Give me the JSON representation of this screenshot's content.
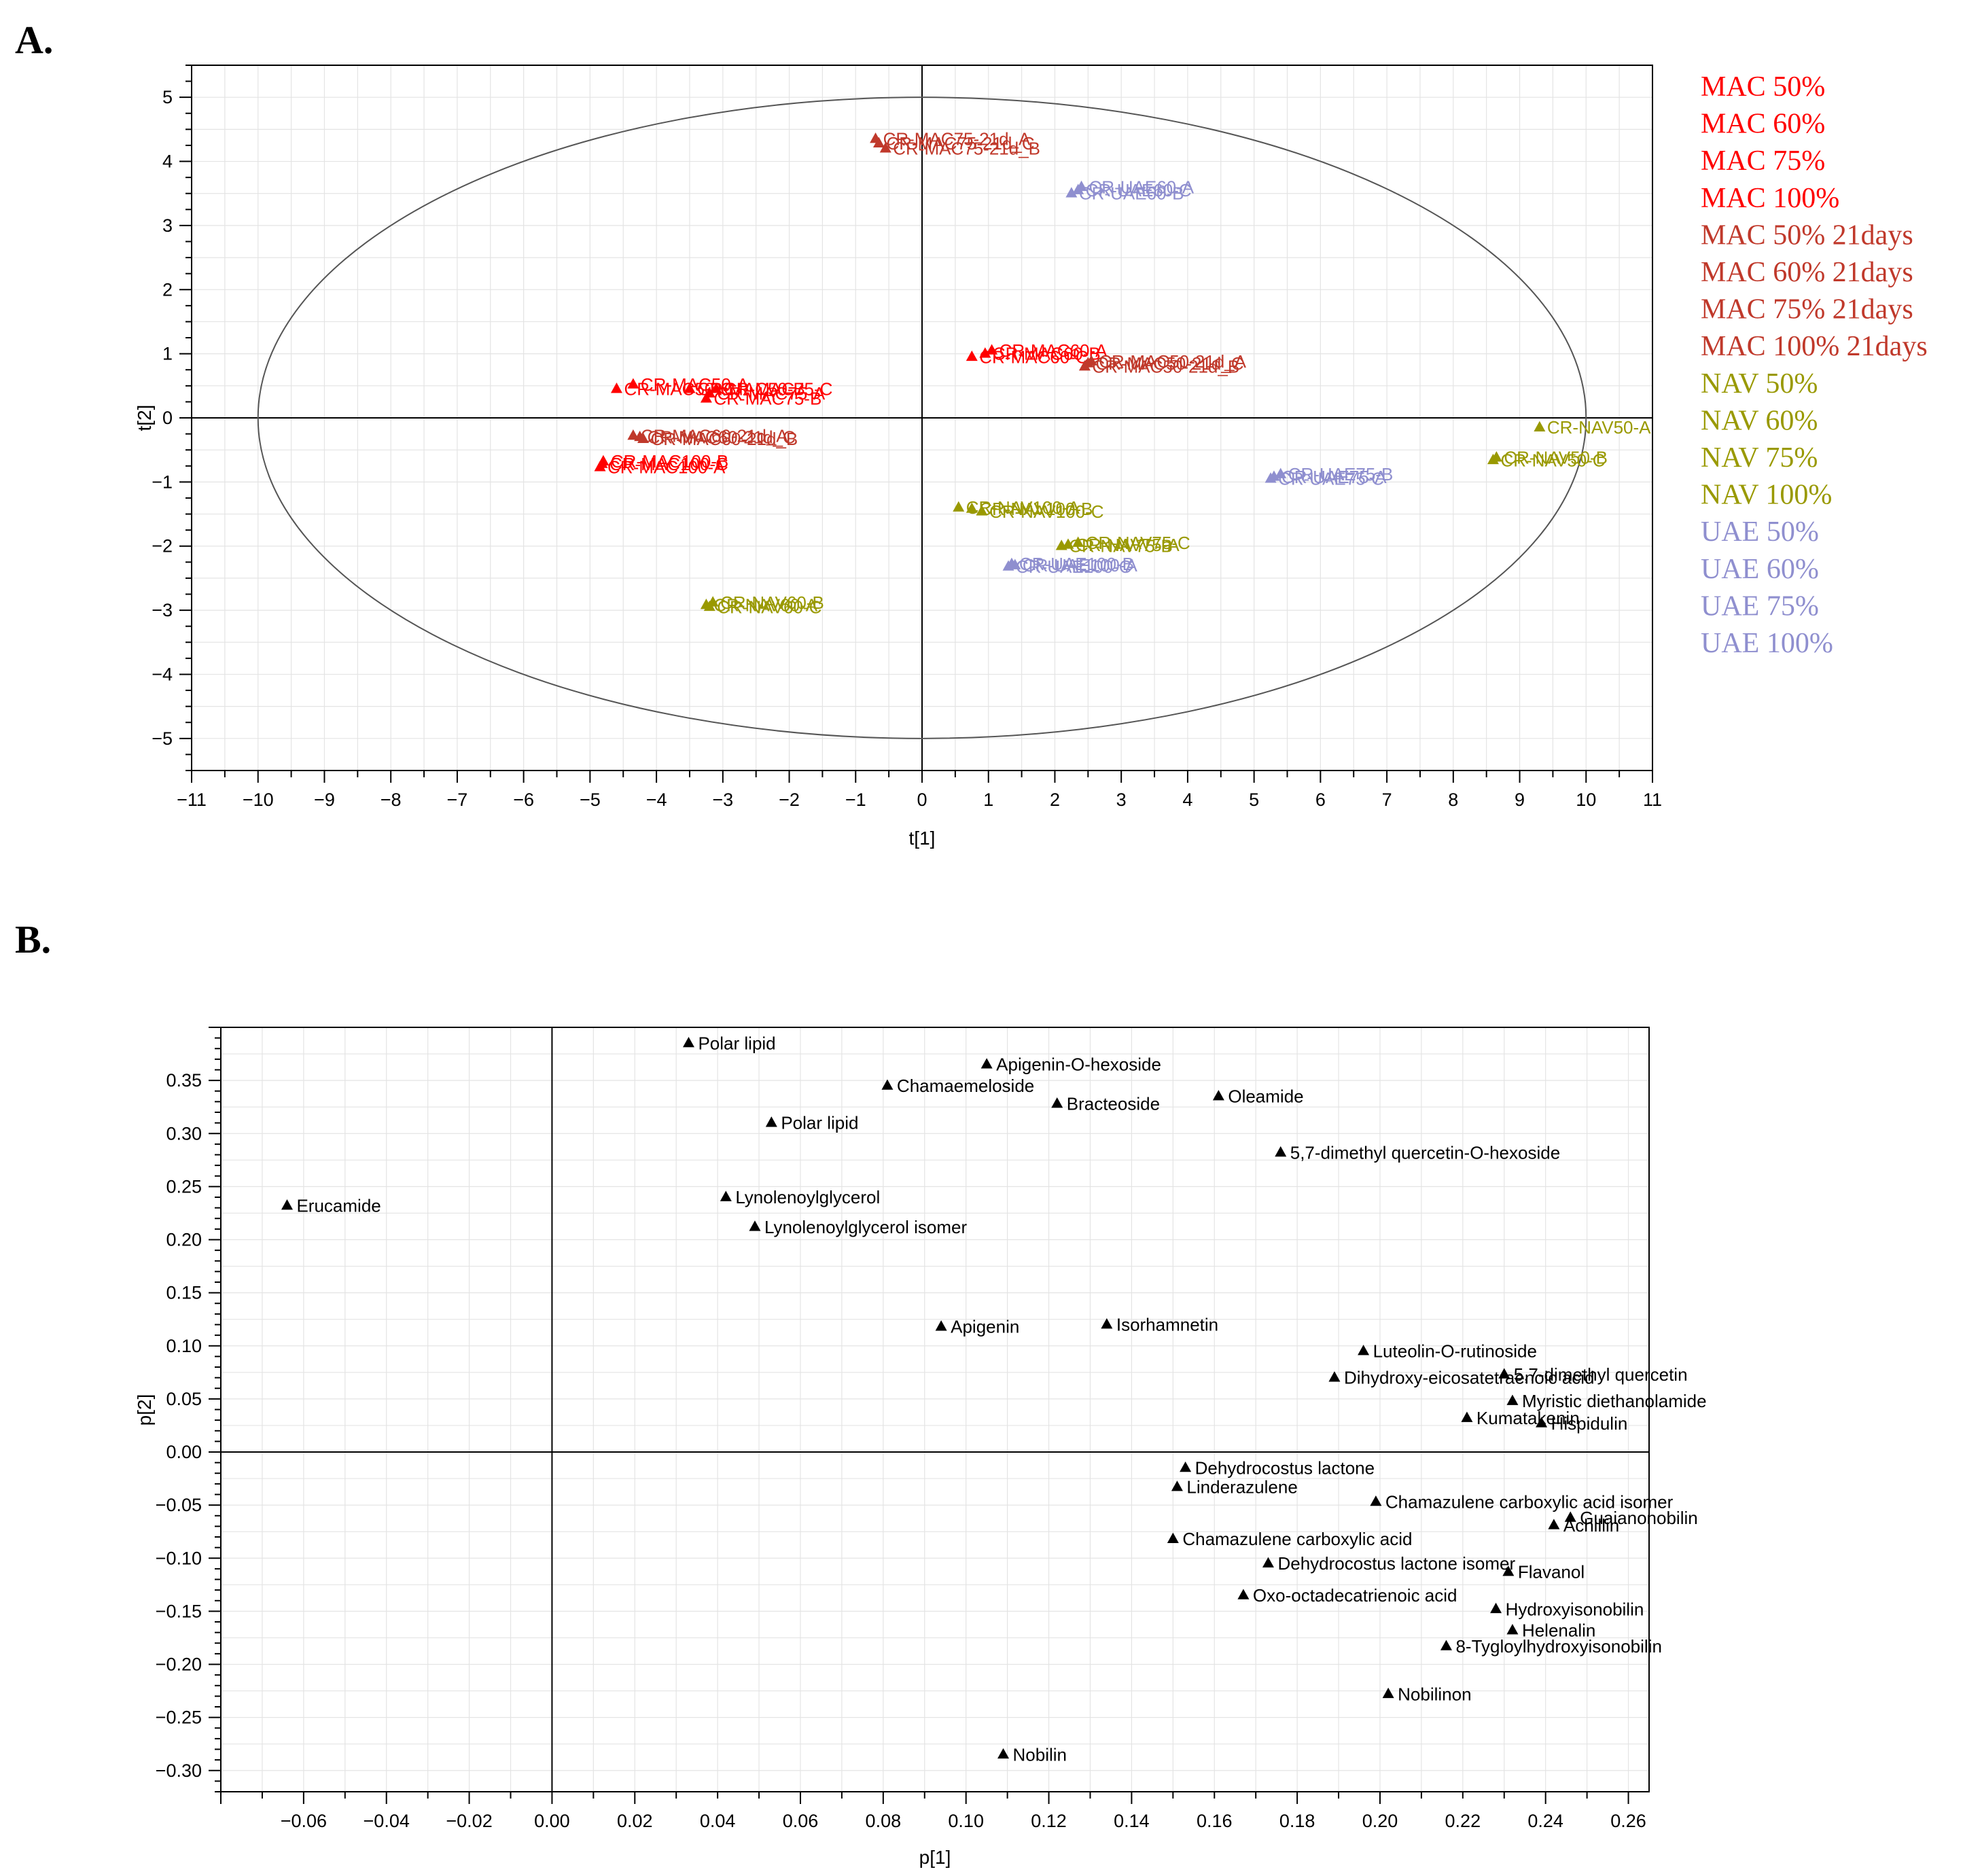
{
  "panels": {
    "a_label": "A.",
    "b_label": "B."
  },
  "chart_data": [
    {
      "type": "scatter",
      "title": "",
      "xlabel": "t[1]",
      "ylabel": "t[2]",
      "xlim": [
        -11,
        11
      ],
      "ylim": [
        -5.5,
        5.5
      ],
      "xticks": [
        -11,
        -10,
        -9,
        -8,
        -7,
        -6,
        -5,
        -4,
        -3,
        -2,
        -1,
        0,
        1,
        2,
        3,
        4,
        5,
        6,
        7,
        8,
        9,
        10,
        11
      ],
      "yticks": [
        -5,
        -4,
        -3,
        -2,
        -1,
        0,
        1,
        2,
        3,
        4,
        5
      ],
      "ellipse": {
        "rx": 10,
        "ry": 5
      },
      "grid": true,
      "colors": {
        "mac": "#ff0000",
        "mac21": "#c0392b",
        "nav": "#999900",
        "uae": "#8f8fcf"
      },
      "legend": [
        {
          "label": "MAC 50%",
          "color": "#ff0000"
        },
        {
          "label": "MAC 60%",
          "color": "#ff0000"
        },
        {
          "label": "MAC 75%",
          "color": "#ff0000"
        },
        {
          "label": "MAC 100%",
          "color": "#ff0000"
        },
        {
          "label": "MAC 50% 21days",
          "color": "#c0392b"
        },
        {
          "label": "MAC 60% 21days",
          "color": "#c0392b"
        },
        {
          "label": "MAC 75% 21days",
          "color": "#c0392b"
        },
        {
          "label": "MAC 100% 21days",
          "color": "#c0392b"
        },
        {
          "label": "NAV 50%",
          "color": "#999900"
        },
        {
          "label": "NAV 60%",
          "color": "#999900"
        },
        {
          "label": "NAV 75%",
          "color": "#999900"
        },
        {
          "label": "NAV 100%",
          "color": "#999900"
        },
        {
          "label": "UAE 50%",
          "color": "#8f8fcf"
        },
        {
          "label": "UAE 60%",
          "color": "#8f8fcf"
        },
        {
          "label": "UAE 75%",
          "color": "#8f8fcf"
        },
        {
          "label": "UAE 100%",
          "color": "#8f8fcf"
        }
      ],
      "points": [
        {
          "label": "CR-MAC75-21d_A",
          "x": -0.7,
          "y": 4.35,
          "group": "mac21"
        },
        {
          "label": "CR-MAC75-21d_C",
          "x": -0.65,
          "y": 4.28,
          "group": "mac21"
        },
        {
          "label": "CR-MAC75-21d_B",
          "x": -0.55,
          "y": 4.2,
          "group": "mac21"
        },
        {
          "label": "CR-UAE60-A",
          "x": 2.4,
          "y": 3.6,
          "group": "uae"
        },
        {
          "label": "CR-UAE60-C",
          "x": 2.35,
          "y": 3.55,
          "group": "uae"
        },
        {
          "label": "CR-UAE60-B",
          "x": 2.25,
          "y": 3.5,
          "group": "uae"
        },
        {
          "label": "CR-MAC60-A",
          "x": 1.05,
          "y": 1.05,
          "group": "mac"
        },
        {
          "label": "CR-MAC60-B",
          "x": 0.95,
          "y": 1.0,
          "group": "mac"
        },
        {
          "label": "CR-MAC60-C",
          "x": 0.75,
          "y": 0.95,
          "group": "mac"
        },
        {
          "label": "CR-MAC50-21d_A",
          "x": 2.55,
          "y": 0.88,
          "group": "mac21"
        },
        {
          "label": "CR-MAC50-21d_C",
          "x": 2.5,
          "y": 0.85,
          "group": "mac21"
        },
        {
          "label": "CR-MAC50-21d_B",
          "x": 2.45,
          "y": 0.8,
          "group": "mac21"
        },
        {
          "label": "CR-MAC50-A",
          "x": -4.35,
          "y": 0.52,
          "group": "mac"
        },
        {
          "label": "CR-MAC50-B",
          "x": -3.5,
          "y": 0.45,
          "group": "mac"
        },
        {
          "label": "CR-MAC50-C",
          "x": -4.6,
          "y": 0.45,
          "group": "mac"
        },
        {
          "label": "CR-MAC75-C",
          "x": -3.1,
          "y": 0.45,
          "group": "mac"
        },
        {
          "label": "CR-MAC75-A",
          "x": -3.2,
          "y": 0.38,
          "group": "mac"
        },
        {
          "label": "CR-MAC75-B",
          "x": -3.25,
          "y": 0.3,
          "group": "mac"
        },
        {
          "label": "CR-MAC60-21d_A",
          "x": -4.35,
          "y": -0.28,
          "group": "mac21"
        },
        {
          "label": "CR-MAC60-21d_C",
          "x": -4.25,
          "y": -0.3,
          "group": "mac21"
        },
        {
          "label": "CR-MAC60-21d_B",
          "x": -4.2,
          "y": -0.33,
          "group": "mac21"
        },
        {
          "label": "CR-MAC100-B",
          "x": -4.8,
          "y": -0.68,
          "group": "mac"
        },
        {
          "label": "CR-MAC100-C",
          "x": -4.82,
          "y": -0.72,
          "group": "mac"
        },
        {
          "label": "CR-MAC100-A",
          "x": -4.85,
          "y": -0.77,
          "group": "mac"
        },
        {
          "label": "CR-NAV50-A",
          "x": 9.3,
          "y": -0.15,
          "group": "nav"
        },
        {
          "label": "CR-NAV50-B",
          "x": 8.65,
          "y": -0.62,
          "group": "nav"
        },
        {
          "label": "CR-NAV50-C",
          "x": 8.6,
          "y": -0.66,
          "group": "nav"
        },
        {
          "label": "CR-UAE75-B",
          "x": 5.4,
          "y": -0.88,
          "group": "uae"
        },
        {
          "label": "CR-UAE75-A",
          "x": 5.3,
          "y": -0.92,
          "group": "uae"
        },
        {
          "label": "CR-UAE75-C",
          "x": 5.25,
          "y": -0.95,
          "group": "uae"
        },
        {
          "label": "CR-NAV100-A",
          "x": 0.55,
          "y": -1.4,
          "group": "nav"
        },
        {
          "label": "CR-NAV100-B",
          "x": 0.75,
          "y": -1.42,
          "group": "nav"
        },
        {
          "label": "CR-NAV100-C",
          "x": 0.9,
          "y": -1.46,
          "group": "nav"
        },
        {
          "label": "CR-NAV75-C",
          "x": 2.35,
          "y": -1.95,
          "group": "nav"
        },
        {
          "label": "CR-NAV75-A",
          "x": 2.2,
          "y": -1.98,
          "group": "nav"
        },
        {
          "label": "CR-NAV75-B",
          "x": 2.1,
          "y": -2.0,
          "group": "nav"
        },
        {
          "label": "CR-UAE100-B",
          "x": 1.35,
          "y": -2.28,
          "group": "uae"
        },
        {
          "label": "CR-UAE100-A",
          "x": 1.4,
          "y": -2.3,
          "group": "uae"
        },
        {
          "label": "CR-UAE100-C",
          "x": 1.3,
          "y": -2.32,
          "group": "uae"
        },
        {
          "label": "CR-NAV60-B",
          "x": -3.15,
          "y": -2.88,
          "group": "nav"
        },
        {
          "label": "CR-NAV60-A",
          "x": -3.25,
          "y": -2.92,
          "group": "nav"
        },
        {
          "label": "CR-NAV60-C",
          "x": -3.2,
          "y": -2.95,
          "group": "nav"
        }
      ]
    },
    {
      "type": "scatter",
      "title": "",
      "xlabel": "p[1]",
      "ylabel": "p[2]",
      "xlim": [
        -0.08,
        0.265
      ],
      "ylim": [
        -0.32,
        0.4
      ],
      "xticks": [
        -0.06,
        -0.04,
        -0.02,
        0.0,
        0.02,
        0.04,
        0.06,
        0.08,
        0.1,
        0.12,
        0.14,
        0.16,
        0.18,
        0.2,
        0.22,
        0.24,
        0.26
      ],
      "xtick_labels": [
        "−0.06",
        "−0.04",
        "−0.02",
        "0.00",
        "0.02",
        "0.04",
        "0.06",
        "0.08",
        "0.10",
        "0.12",
        "0.14",
        "0.16",
        "0.18",
        "0.20",
        "0.22",
        "0.24",
        "0.26"
      ],
      "yticks": [
        -0.3,
        -0.25,
        -0.2,
        -0.15,
        -0.1,
        -0.05,
        0.0,
        0.05,
        0.1,
        0.15,
        0.2,
        0.25,
        0.3,
        0.35
      ],
      "ytick_labels": [
        "−0.30",
        "−0.25",
        "−0.20",
        "−0.15",
        "−0.10",
        "−0.05",
        "0.00",
        "0.05",
        "0.10",
        "0.15",
        "0.20",
        "0.25",
        "0.30",
        "0.35"
      ],
      "grid": true,
      "points": [
        {
          "label": "Polar lipid",
          "x": 0.033,
          "y": 0.385
        },
        {
          "label": "Apigenin-O-hexoside",
          "x": 0.105,
          "y": 0.365
        },
        {
          "label": "Chamaemeloside",
          "x": 0.081,
          "y": 0.345
        },
        {
          "label": "Bracteoside",
          "x": 0.122,
          "y": 0.328
        },
        {
          "label": "Oleamide",
          "x": 0.161,
          "y": 0.335
        },
        {
          "label": "Polar lipid",
          "x": 0.053,
          "y": 0.31
        },
        {
          "label": "5,7-dimethyl quercetin-O-hexoside",
          "x": 0.176,
          "y": 0.282
        },
        {
          "label": "Erucamide",
          "x": -0.064,
          "y": 0.232
        },
        {
          "label": "Lynolenoylglycerol",
          "x": 0.042,
          "y": 0.24
        },
        {
          "label": "Lynolenoylglycerol isomer",
          "x": 0.049,
          "y": 0.212
        },
        {
          "label": "Apigenin",
          "x": 0.094,
          "y": 0.118
        },
        {
          "label": "Isorhamnetin",
          "x": 0.134,
          "y": 0.12
        },
        {
          "label": "Luteolin-O-rutinoside",
          "x": 0.196,
          "y": 0.095
        },
        {
          "label": "5,7-dimethyl quercetin",
          "x": 0.23,
          "y": 0.073
        },
        {
          "label": "Dihydroxy-eicosatetraenoic acid",
          "x": 0.189,
          "y": 0.07
        },
        {
          "label": "Myristic diethanolamide",
          "x": 0.232,
          "y": 0.048
        },
        {
          "label": "Kumatakenin",
          "x": 0.221,
          "y": 0.032
        },
        {
          "label": "Hispidulin",
          "x": 0.239,
          "y": 0.027
        },
        {
          "label": "Dehydrocostus lactone",
          "x": 0.153,
          "y": -0.015
        },
        {
          "label": "Linderazulene",
          "x": 0.151,
          "y": -0.033
        },
        {
          "label": "Chamazulene carboxylic acid isomer",
          "x": 0.199,
          "y": -0.047
        },
        {
          "label": "Guaianonobilin",
          "x": 0.246,
          "y": -0.062
        },
        {
          "label": "Achillin",
          "x": 0.242,
          "y": -0.069
        },
        {
          "label": "Chamazulene carboxylic acid",
          "x": 0.15,
          "y": -0.082
        },
        {
          "label": "Dehydrocostus lactone isomer",
          "x": 0.173,
          "y": -0.105
        },
        {
          "label": "Flavanol",
          "x": 0.231,
          "y": -0.113
        },
        {
          "label": "Oxo-octadecatrienoic acid",
          "x": 0.167,
          "y": -0.135
        },
        {
          "label": "Hydroxyisonobilin",
          "x": 0.228,
          "y": -0.148
        },
        {
          "label": "Helenalin",
          "x": 0.232,
          "y": -0.168
        },
        {
          "label": "8-Tygloylhydroxyisonobilin",
          "x": 0.216,
          "y": -0.183
        },
        {
          "label": "Nobilinon",
          "x": 0.202,
          "y": -0.228
        },
        {
          "label": "Nobilin",
          "x": 0.109,
          "y": -0.285
        }
      ]
    }
  ]
}
